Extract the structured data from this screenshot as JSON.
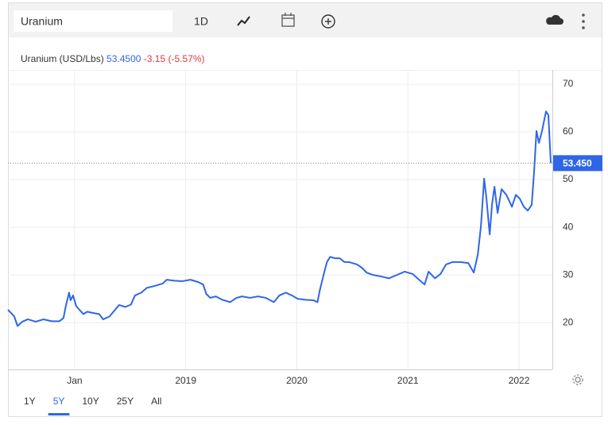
{
  "ui": {
    "search": "Uranium",
    "interval": "1D",
    "ranges": [
      "1Y",
      "5Y",
      "10Y",
      "25Y",
      "All"
    ],
    "active_range": 1
  },
  "chart_data": {
    "type": "line",
    "title": "Uranium (USD/Lbs)",
    "price": "53.4500",
    "change": "-3.15",
    "change_pct": "(-5.57%)",
    "last_label": "53.450",
    "x": [
      2017.4,
      2017.457,
      2017.486,
      2017.529,
      2017.579,
      2017.65,
      2017.721,
      2017.793,
      2017.864,
      2017.9,
      2017.921,
      2017.95,
      2017.964,
      2017.986,
      2018.014,
      2018.043,
      2018.079,
      2018.114,
      2018.171,
      2018.221,
      2018.257,
      2018.314,
      2018.364,
      2018.4,
      2018.457,
      2018.507,
      2018.543,
      2018.6,
      2018.65,
      2018.721,
      2018.793,
      2018.829,
      2018.9,
      2018.971,
      2019.043,
      2019.114,
      2019.157,
      2019.186,
      2019.221,
      2019.271,
      2019.329,
      2019.4,
      2019.457,
      2019.507,
      2019.579,
      2019.65,
      2019.721,
      2019.793,
      2019.843,
      2019.9,
      2019.957,
      2020.007,
      2020.079,
      2020.15,
      2020.186,
      2020.207,
      2020.243,
      2020.271,
      2020.3,
      2020.343,
      2020.386,
      2020.429,
      2020.471,
      2020.543,
      2020.586,
      2020.629,
      2020.686,
      2020.757,
      2020.829,
      2020.9,
      2020.971,
      2021.043,
      2021.1,
      2021.15,
      2021.186,
      2021.243,
      2021.293,
      2021.343,
      2021.4,
      2021.471,
      2021.543,
      2021.593,
      2021.629,
      2021.657,
      2021.686,
      2021.707,
      2021.736,
      2021.757,
      2021.779,
      2021.807,
      2021.843,
      2021.886,
      2021.936,
      2021.971,
      2022.007,
      2022.043,
      2022.079,
      2022.114,
      2022.136,
      2022.157,
      2022.179,
      2022.207,
      2022.243,
      2022.264,
      2022.286
    ],
    "series": [
      {
        "name": "Uranium",
        "color": "#2f66e8",
        "values": [
          22.7,
          21.3,
          19.3,
          20.2,
          20.7,
          20.2,
          20.7,
          20.3,
          20.3,
          21,
          23.5,
          26.3,
          24.7,
          25.7,
          23.5,
          22.7,
          21.8,
          22.3,
          22,
          21.8,
          20.7,
          21.3,
          22.7,
          23.7,
          23.3,
          23.8,
          25.7,
          26.3,
          27.3,
          27.7,
          28.2,
          29,
          28.8,
          28.7,
          29,
          28.5,
          28,
          26,
          25.2,
          25.5,
          24.8,
          24.3,
          25.2,
          25.5,
          25.2,
          25.5,
          25.2,
          24.3,
          25.7,
          26.3,
          25.7,
          25,
          24.8,
          24.7,
          24.3,
          26.8,
          30.2,
          32.7,
          33.8,
          33.5,
          33.5,
          32.7,
          32.7,
          32.2,
          31.5,
          30.5,
          30,
          29.7,
          29.3,
          30,
          30.7,
          30.2,
          29,
          28,
          30.7,
          29.3,
          30.2,
          32.2,
          32.7,
          32.7,
          32.5,
          30.5,
          34.3,
          40.2,
          50.2,
          46,
          38.5,
          44.8,
          48.5,
          43,
          48,
          46.8,
          44.3,
          46.8,
          46,
          44.3,
          43.5,
          44.7,
          51.8,
          60.2,
          57.7,
          60.2,
          64.3,
          63.5,
          53.45
        ]
      }
    ],
    "xlim": [
      2017.4,
      2022.3
    ],
    "xticks": [
      {
        "value": 2018,
        "label": "Jan"
      },
      2019,
      2020,
      2021,
      2022
    ],
    "ylim": [
      10.2,
      73.0
    ],
    "yticks": [
      20,
      30,
      40,
      50,
      60,
      70
    ],
    "grid": true
  }
}
